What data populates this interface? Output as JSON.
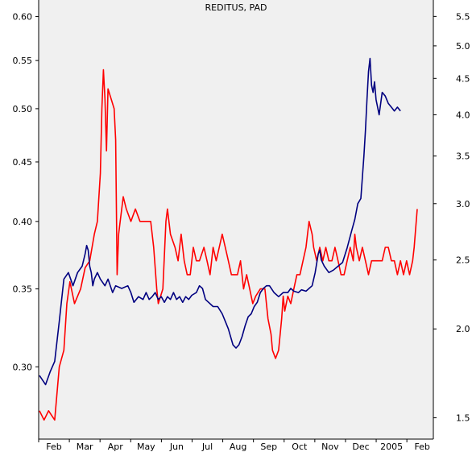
{
  "chart_data": {
    "type": "line",
    "title": "REDITUS, PAD",
    "x_ticks": [
      "Feb",
      "Mar",
      "Apr",
      "May",
      "Jun",
      "Jul",
      "Aug",
      "Sep",
      "Oct",
      "Nov",
      "Dec",
      "2005",
      "Feb"
    ],
    "left_axis": {
      "scale": "log",
      "ylim": [
        0.26,
        0.62
      ],
      "ticks": [
        "0.60",
        "0.55",
        "0.50",
        "0.45",
        "0.40",
        "0.35",
        "0.30"
      ]
    },
    "right_axis": {
      "scale": "log",
      "ylim": [
        1.4,
        5.8
      ],
      "ticks": [
        "5.5",
        "5.0",
        "4.5",
        "4.0",
        "3.5",
        "3.0",
        "2.5",
        "2.0",
        "1.5"
      ]
    },
    "grid": false,
    "colors": {
      "red_series": "#ff0000",
      "blue_series": "#000080",
      "plot_bg": "#f0f0f0"
    },
    "series": [
      {
        "axis": "left",
        "color": "#ff0000",
        "points": [
          [
            0,
            0.275
          ],
          [
            3,
            0.27
          ],
          [
            6,
            0.275
          ],
          [
            10,
            0.27
          ],
          [
            13,
            0.3
          ],
          [
            16,
            0.31
          ],
          [
            18,
            0.34
          ],
          [
            20,
            0.355
          ],
          [
            23,
            0.34
          ],
          [
            27,
            0.35
          ],
          [
            30,
            0.365
          ],
          [
            33,
            0.37
          ],
          [
            36,
            0.39
          ],
          [
            38,
            0.4
          ],
          [
            40,
            0.44
          ],
          [
            41,
            0.5
          ],
          [
            42,
            0.54
          ],
          [
            43,
            0.51
          ],
          [
            44,
            0.46
          ],
          [
            45,
            0.52
          ],
          [
            47,
            0.51
          ],
          [
            49,
            0.5
          ],
          [
            50,
            0.47
          ],
          [
            51,
            0.36
          ],
          [
            52,
            0.39
          ],
          [
            53,
            0.4
          ],
          [
            55,
            0.42
          ],
          [
            57,
            0.41
          ],
          [
            60,
            0.4
          ],
          [
            63,
            0.41
          ],
          [
            66,
            0.4
          ],
          [
            70,
            0.4
          ],
          [
            73,
            0.4
          ],
          [
            75,
            0.38
          ],
          [
            77,
            0.35
          ],
          [
            78,
            0.34
          ],
          [
            81,
            0.35
          ],
          [
            83,
            0.4
          ],
          [
            84,
            0.41
          ],
          [
            86,
            0.39
          ],
          [
            89,
            0.38
          ],
          [
            91,
            0.37
          ],
          [
            93,
            0.39
          ],
          [
            95,
            0.37
          ],
          [
            97,
            0.36
          ],
          [
            99,
            0.36
          ],
          [
            101,
            0.38
          ],
          [
            103,
            0.37
          ],
          [
            105,
            0.37
          ],
          [
            108,
            0.38
          ],
          [
            110,
            0.37
          ],
          [
            112,
            0.36
          ],
          [
            114,
            0.38
          ],
          [
            116,
            0.37
          ],
          [
            118,
            0.38
          ],
          [
            120,
            0.39
          ],
          [
            122,
            0.38
          ],
          [
            124,
            0.37
          ],
          [
            126,
            0.36
          ],
          [
            130,
            0.36
          ],
          [
            132,
            0.37
          ],
          [
            134,
            0.35
          ],
          [
            136,
            0.36
          ],
          [
            138,
            0.35
          ],
          [
            140,
            0.34
          ],
          [
            142,
            0.345
          ],
          [
            145,
            0.35
          ],
          [
            148,
            0.35
          ],
          [
            150,
            0.33
          ],
          [
            152,
            0.32
          ],
          [
            153,
            0.31
          ],
          [
            155,
            0.305
          ],
          [
            157,
            0.31
          ],
          [
            159,
            0.33
          ],
          [
            160,
            0.345
          ],
          [
            161,
            0.335
          ],
          [
            163,
            0.345
          ],
          [
            165,
            0.34
          ],
          [
            167,
            0.35
          ],
          [
            169,
            0.36
          ],
          [
            171,
            0.36
          ],
          [
            173,
            0.37
          ],
          [
            175,
            0.38
          ],
          [
            176,
            0.39
          ],
          [
            177,
            0.4
          ],
          [
            179,
            0.39
          ],
          [
            180,
            0.38
          ],
          [
            182,
            0.37
          ],
          [
            184,
            0.38
          ],
          [
            186,
            0.37
          ],
          [
            188,
            0.38
          ],
          [
            190,
            0.37
          ],
          [
            192,
            0.37
          ],
          [
            194,
            0.38
          ],
          [
            196,
            0.37
          ],
          [
            198,
            0.36
          ],
          [
            200,
            0.36
          ],
          [
            202,
            0.37
          ],
          [
            204,
            0.38
          ],
          [
            206,
            0.37
          ],
          [
            207,
            0.39
          ],
          [
            208,
            0.38
          ],
          [
            210,
            0.37
          ],
          [
            212,
            0.38
          ],
          [
            214,
            0.37
          ],
          [
            216,
            0.36
          ],
          [
            218,
            0.37
          ],
          [
            220,
            0.37
          ],
          [
            225,
            0.37
          ],
          [
            227,
            0.38
          ],
          [
            229,
            0.38
          ],
          [
            231,
            0.37
          ],
          [
            233,
            0.37
          ],
          [
            235,
            0.36
          ],
          [
            237,
            0.37
          ],
          [
            239,
            0.36
          ],
          [
            241,
            0.37
          ],
          [
            243,
            0.36
          ],
          [
            245,
            0.37
          ],
          [
            246,
            0.38
          ],
          [
            248,
            0.41
          ]
        ]
      },
      {
        "axis": "right",
        "color": "#000080",
        "points": [
          [
            0,
            1.72
          ],
          [
            4,
            1.67
          ],
          [
            7,
            1.74
          ],
          [
            10,
            1.8
          ],
          [
            13,
            2.05
          ],
          [
            16,
            2.35
          ],
          [
            19,
            2.4
          ],
          [
            22,
            2.3
          ],
          [
            25,
            2.4
          ],
          [
            28,
            2.45
          ],
          [
            30,
            2.55
          ],
          [
            31,
            2.62
          ],
          [
            32,
            2.58
          ],
          [
            33,
            2.45
          ],
          [
            34,
            2.4
          ],
          [
            35,
            2.3
          ],
          [
            36,
            2.35
          ],
          [
            38,
            2.4
          ],
          [
            40,
            2.35
          ],
          [
            43,
            2.3
          ],
          [
            45,
            2.35
          ],
          [
            48,
            2.25
          ],
          [
            50,
            2.3
          ],
          [
            54,
            2.28
          ],
          [
            58,
            2.3
          ],
          [
            60,
            2.25
          ],
          [
            62,
            2.18
          ],
          [
            65,
            2.22
          ],
          [
            68,
            2.2
          ],
          [
            70,
            2.25
          ],
          [
            72,
            2.2
          ],
          [
            74,
            2.22
          ],
          [
            76,
            2.25
          ],
          [
            78,
            2.2
          ],
          [
            80,
            2.22
          ],
          [
            82,
            2.18
          ],
          [
            84,
            2.22
          ],
          [
            86,
            2.2
          ],
          [
            88,
            2.25
          ],
          [
            90,
            2.2
          ],
          [
            92,
            2.22
          ],
          [
            94,
            2.18
          ],
          [
            96,
            2.22
          ],
          [
            98,
            2.2
          ],
          [
            100,
            2.23
          ],
          [
            103,
            2.25
          ],
          [
            105,
            2.3
          ],
          [
            107,
            2.28
          ],
          [
            109,
            2.2
          ],
          [
            111,
            2.18
          ],
          [
            114,
            2.15
          ],
          [
            117,
            2.15
          ],
          [
            120,
            2.1
          ],
          [
            122,
            2.05
          ],
          [
            124,
            2.0
          ],
          [
            127,
            1.9
          ],
          [
            129,
            1.88
          ],
          [
            131,
            1.9
          ],
          [
            133,
            1.95
          ],
          [
            135,
            2.02
          ],
          [
            137,
            2.08
          ],
          [
            139,
            2.1
          ],
          [
            141,
            2.15
          ],
          [
            143,
            2.18
          ],
          [
            145,
            2.25
          ],
          [
            147,
            2.28
          ],
          [
            149,
            2.3
          ],
          [
            151,
            2.3
          ],
          [
            154,
            2.25
          ],
          [
            157,
            2.22
          ],
          [
            160,
            2.25
          ],
          [
            163,
            2.25
          ],
          [
            165,
            2.28
          ],
          [
            167,
            2.26
          ],
          [
            170,
            2.25
          ],
          [
            172,
            2.27
          ],
          [
            175,
            2.26
          ],
          [
            177,
            2.28
          ],
          [
            179,
            2.3
          ],
          [
            181,
            2.4
          ],
          [
            183,
            2.55
          ],
          [
            184,
            2.58
          ],
          [
            185,
            2.5
          ],
          [
            187,
            2.45
          ],
          [
            190,
            2.4
          ],
          [
            193,
            2.42
          ],
          [
            196,
            2.45
          ],
          [
            199,
            2.48
          ],
          [
            202,
            2.6
          ],
          [
            205,
            2.75
          ],
          [
            207,
            2.85
          ],
          [
            209,
            3.0
          ],
          [
            211,
            3.05
          ],
          [
            213,
            3.5
          ],
          [
            214,
            3.8
          ],
          [
            215,
            4.2
          ],
          [
            216,
            4.6
          ],
          [
            217,
            4.8
          ],
          [
            218,
            4.4
          ],
          [
            219,
            4.3
          ],
          [
            220,
            4.45
          ],
          [
            221,
            4.2
          ],
          [
            222,
            4.1
          ],
          [
            223,
            4.0
          ],
          [
            225,
            4.3
          ],
          [
            227,
            4.25
          ],
          [
            229,
            4.15
          ],
          [
            231,
            4.1
          ],
          [
            233,
            4.05
          ],
          [
            235,
            4.1
          ],
          [
            237,
            4.05
          ]
        ]
      }
    ]
  }
}
